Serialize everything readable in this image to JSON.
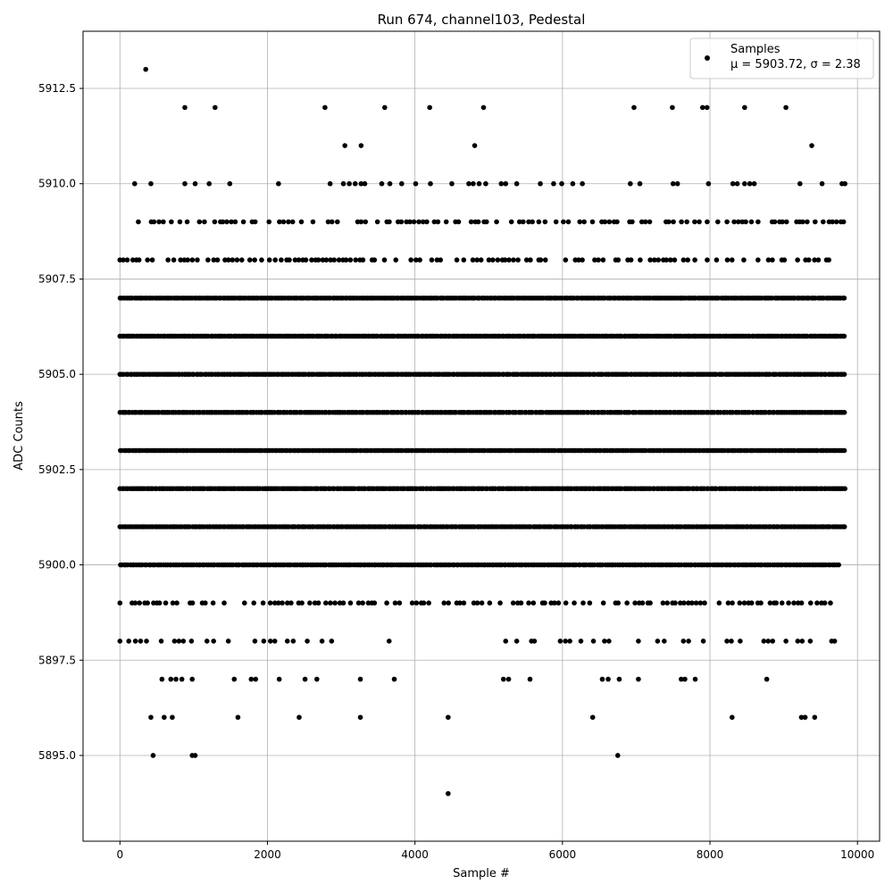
{
  "chart_data": {
    "type": "scatter",
    "title": "Run 674, channel103, Pedestal",
    "xlabel": "Sample #",
    "ylabel": "ADC Counts",
    "xlim": [
      -500,
      10300
    ],
    "ylim": [
      5892.75,
      5914.0
    ],
    "xticks": [
      0,
      2000,
      4000,
      6000,
      8000,
      10000
    ],
    "xtick_labels": [
      "0",
      "2000",
      "4000",
      "6000",
      "8000",
      "10000"
    ],
    "yticks": [
      5895.0,
      5897.5,
      5900.0,
      5902.5,
      5905.0,
      5907.5,
      5910.0,
      5912.5
    ],
    "ytick_labels": [
      "5895.0",
      "5897.5",
      "5900.0",
      "5902.5",
      "5905.0",
      "5907.5",
      "5910.0",
      "5912.5"
    ],
    "grid": true,
    "legend_position": "top-right",
    "marker_color": "#000000",
    "series": [
      {
        "name": "Samples",
        "legend_stats": "μ = 5903.72, σ = 2.38",
        "dense_levels": [
          {
            "y": 5907,
            "x_range": [
              0,
              9830
            ]
          },
          {
            "y": 5906,
            "x_range": [
              0,
              9830
            ]
          },
          {
            "y": 5905,
            "x_range": [
              0,
              9830
            ]
          },
          {
            "y": 5904,
            "x_range": [
              0,
              9830
            ]
          },
          {
            "y": 5903,
            "x_range": [
              0,
              9830
            ]
          },
          {
            "y": 5902,
            "x_range": [
              0,
              9830
            ]
          },
          {
            "y": 5901,
            "x_range": [
              0,
              9830
            ]
          },
          {
            "y": 5900,
            "x_range": [
              0,
              9760
            ]
          },
          {
            "y": 5908,
            "x_range": [
              0,
              9830
            ]
          },
          {
            "y": 5909,
            "x_range": [
              250,
              9830
            ]
          },
          {
            "y": 5899,
            "x_range": [
              0,
              9700
            ]
          }
        ],
        "points": [
          {
            "x": 350,
            "y": 5913
          },
          {
            "x": 880,
            "y": 5912
          },
          {
            "x": 1290,
            "y": 5912
          },
          {
            "x": 2780,
            "y": 5912
          },
          {
            "x": 3590,
            "y": 5912
          },
          {
            "x": 4200,
            "y": 5912
          },
          {
            "x": 4930,
            "y": 5912
          },
          {
            "x": 6970,
            "y": 5912
          },
          {
            "x": 7490,
            "y": 5912
          },
          {
            "x": 7900,
            "y": 5912
          },
          {
            "x": 7960,
            "y": 5912
          },
          {
            "x": 8470,
            "y": 5912
          },
          {
            "x": 9030,
            "y": 5912
          },
          {
            "x": 3050,
            "y": 5911
          },
          {
            "x": 3270,
            "y": 5911
          },
          {
            "x": 4810,
            "y": 5911
          },
          {
            "x": 9380,
            "y": 5911
          },
          {
            "x": 200,
            "y": 5910
          },
          {
            "x": 420,
            "y": 5910
          },
          {
            "x": 880,
            "y": 5910
          },
          {
            "x": 1020,
            "y": 5910
          },
          {
            "x": 1210,
            "y": 5910
          },
          {
            "x": 1490,
            "y": 5910
          },
          {
            "x": 2150,
            "y": 5910
          },
          {
            "x": 2850,
            "y": 5910
          },
          {
            "x": 3030,
            "y": 5910
          },
          {
            "x": 3110,
            "y": 5910
          },
          {
            "x": 3190,
            "y": 5910
          },
          {
            "x": 3270,
            "y": 5910
          },
          {
            "x": 3320,
            "y": 5910
          },
          {
            "x": 3550,
            "y": 5910
          },
          {
            "x": 3660,
            "y": 5910
          },
          {
            "x": 3820,
            "y": 5910
          },
          {
            "x": 4010,
            "y": 5910
          },
          {
            "x": 4210,
            "y": 5910
          },
          {
            "x": 4500,
            "y": 5910
          },
          {
            "x": 4730,
            "y": 5910
          },
          {
            "x": 4790,
            "y": 5910
          },
          {
            "x": 4870,
            "y": 5910
          },
          {
            "x": 4960,
            "y": 5910
          },
          {
            "x": 5170,
            "y": 5910
          },
          {
            "x": 5230,
            "y": 5910
          },
          {
            "x": 5380,
            "y": 5910
          },
          {
            "x": 5700,
            "y": 5910
          },
          {
            "x": 5880,
            "y": 5910
          },
          {
            "x": 5990,
            "y": 5910
          },
          {
            "x": 6140,
            "y": 5910
          },
          {
            "x": 6270,
            "y": 5910
          },
          {
            "x": 6920,
            "y": 5910
          },
          {
            "x": 7050,
            "y": 5910
          },
          {
            "x": 7500,
            "y": 5910
          },
          {
            "x": 7560,
            "y": 5910
          },
          {
            "x": 7980,
            "y": 5910
          },
          {
            "x": 8310,
            "y": 5910
          },
          {
            "x": 8370,
            "y": 5910
          },
          {
            "x": 8470,
            "y": 5910
          },
          {
            "x": 8540,
            "y": 5910
          },
          {
            "x": 8600,
            "y": 5910
          },
          {
            "x": 9220,
            "y": 5910
          },
          {
            "x": 9520,
            "y": 5910
          },
          {
            "x": 9790,
            "y": 5910
          },
          {
            "x": 9830,
            "y": 5910
          },
          {
            "x": 0,
            "y": 5898
          },
          {
            "x": 120,
            "y": 5898
          },
          {
            "x": 210,
            "y": 5898
          },
          {
            "x": 280,
            "y": 5898
          },
          {
            "x": 360,
            "y": 5898
          },
          {
            "x": 560,
            "y": 5898
          },
          {
            "x": 740,
            "y": 5898
          },
          {
            "x": 800,
            "y": 5898
          },
          {
            "x": 860,
            "y": 5898
          },
          {
            "x": 970,
            "y": 5898
          },
          {
            "x": 1180,
            "y": 5898
          },
          {
            "x": 1270,
            "y": 5898
          },
          {
            "x": 1470,
            "y": 5898
          },
          {
            "x": 1830,
            "y": 5898
          },
          {
            "x": 1950,
            "y": 5898
          },
          {
            "x": 2040,
            "y": 5898
          },
          {
            "x": 2100,
            "y": 5898
          },
          {
            "x": 2270,
            "y": 5898
          },
          {
            "x": 2350,
            "y": 5898
          },
          {
            "x": 2540,
            "y": 5898
          },
          {
            "x": 2740,
            "y": 5898
          },
          {
            "x": 2870,
            "y": 5898
          },
          {
            "x": 3650,
            "y": 5898
          },
          {
            "x": 5230,
            "y": 5898
          },
          {
            "x": 5380,
            "y": 5898
          },
          {
            "x": 5580,
            "y": 5898
          },
          {
            "x": 5620,
            "y": 5898
          },
          {
            "x": 5970,
            "y": 5898
          },
          {
            "x": 6040,
            "y": 5898
          },
          {
            "x": 6100,
            "y": 5898
          },
          {
            "x": 6250,
            "y": 5898
          },
          {
            "x": 6420,
            "y": 5898
          },
          {
            "x": 6570,
            "y": 5898
          },
          {
            "x": 6630,
            "y": 5898
          },
          {
            "x": 7030,
            "y": 5898
          },
          {
            "x": 7290,
            "y": 5898
          },
          {
            "x": 7380,
            "y": 5898
          },
          {
            "x": 7640,
            "y": 5898
          },
          {
            "x": 7710,
            "y": 5898
          },
          {
            "x": 7910,
            "y": 5898
          },
          {
            "x": 8230,
            "y": 5898
          },
          {
            "x": 8290,
            "y": 5898
          },
          {
            "x": 8410,
            "y": 5898
          },
          {
            "x": 8730,
            "y": 5898
          },
          {
            "x": 8790,
            "y": 5898
          },
          {
            "x": 8850,
            "y": 5898
          },
          {
            "x": 9030,
            "y": 5898
          },
          {
            "x": 9190,
            "y": 5898
          },
          {
            "x": 9250,
            "y": 5898
          },
          {
            "x": 9360,
            "y": 5898
          },
          {
            "x": 9650,
            "y": 5898
          },
          {
            "x": 9690,
            "y": 5898
          },
          {
            "x": 570,
            "y": 5897
          },
          {
            "x": 690,
            "y": 5897
          },
          {
            "x": 760,
            "y": 5897
          },
          {
            "x": 840,
            "y": 5897
          },
          {
            "x": 980,
            "y": 5897
          },
          {
            "x": 1550,
            "y": 5897
          },
          {
            "x": 1780,
            "y": 5897
          },
          {
            "x": 1840,
            "y": 5897
          },
          {
            "x": 2160,
            "y": 5897
          },
          {
            "x": 2510,
            "y": 5897
          },
          {
            "x": 2670,
            "y": 5897
          },
          {
            "x": 3260,
            "y": 5897
          },
          {
            "x": 3720,
            "y": 5897
          },
          {
            "x": 5200,
            "y": 5897
          },
          {
            "x": 5270,
            "y": 5897
          },
          {
            "x": 5560,
            "y": 5897
          },
          {
            "x": 6540,
            "y": 5897
          },
          {
            "x": 6620,
            "y": 5897
          },
          {
            "x": 6770,
            "y": 5897
          },
          {
            "x": 7030,
            "y": 5897
          },
          {
            "x": 7610,
            "y": 5897
          },
          {
            "x": 7660,
            "y": 5897
          },
          {
            "x": 7800,
            "y": 5897
          },
          {
            "x": 8770,
            "y": 5897
          },
          {
            "x": 420,
            "y": 5896
          },
          {
            "x": 600,
            "y": 5896
          },
          {
            "x": 710,
            "y": 5896
          },
          {
            "x": 1600,
            "y": 5896
          },
          {
            "x": 2430,
            "y": 5896
          },
          {
            "x": 3260,
            "y": 5896
          },
          {
            "x": 4450,
            "y": 5896
          },
          {
            "x": 6410,
            "y": 5896
          },
          {
            "x": 8300,
            "y": 5896
          },
          {
            "x": 9240,
            "y": 5896
          },
          {
            "x": 9290,
            "y": 5896
          },
          {
            "x": 9420,
            "y": 5896
          },
          {
            "x": 450,
            "y": 5895
          },
          {
            "x": 980,
            "y": 5895
          },
          {
            "x": 1020,
            "y": 5895
          },
          {
            "x": 6750,
            "y": 5895
          },
          {
            "x": 4450,
            "y": 5894
          }
        ]
      }
    ]
  }
}
